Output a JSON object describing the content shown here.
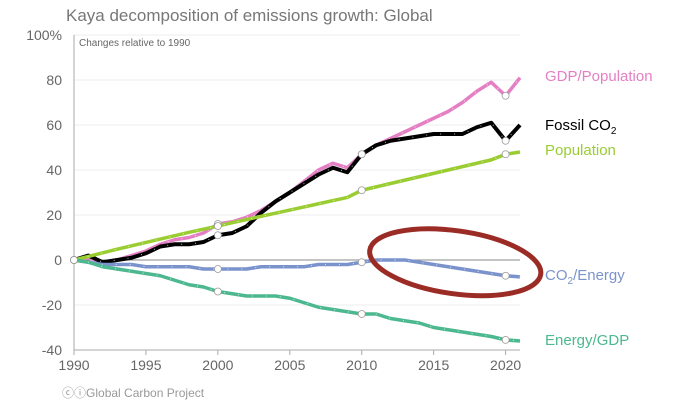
{
  "chart_data": {
    "type": "line",
    "title": "Kaya decomposition of emissions growth: Global",
    "subtitle": "Changes relative to 1990",
    "credit": "Global Carbon Project",
    "xlabel": "",
    "ylabel": "",
    "xlim": [
      1990,
      2021
    ],
    "ylim": [
      -40,
      100
    ],
    "xticks": [
      1990,
      1995,
      2000,
      2005,
      2010,
      2015,
      2020
    ],
    "yticks": [
      {
        "v": 100,
        "t": "100%"
      },
      {
        "v": 80,
        "t": "80"
      },
      {
        "v": 60,
        "t": "60"
      },
      {
        "v": 40,
        "t": "40"
      },
      {
        "v": 20,
        "t": "20"
      },
      {
        "v": 0,
        "t": "0"
      },
      {
        "v": -20,
        "t": "-20"
      },
      {
        "v": -40,
        "t": "-40"
      }
    ],
    "grid": true,
    "x": [
      1990,
      1991,
      1992,
      1993,
      1994,
      1995,
      1996,
      1997,
      1998,
      1999,
      2000,
      2001,
      2002,
      2003,
      2004,
      2005,
      2006,
      2007,
      2008,
      2009,
      2010,
      2011,
      2012,
      2013,
      2014,
      2015,
      2016,
      2017,
      2018,
      2019,
      2020,
      2021
    ],
    "series": [
      {
        "name": "GDP/Population",
        "color": "#e57fc4",
        "values": [
          0,
          1,
          -1,
          0,
          2,
          4,
          7,
          9,
          10,
          12,
          16,
          17,
          19,
          22,
          26,
          30,
          35,
          40,
          43,
          41,
          47,
          51,
          54,
          57,
          60,
          63,
          66,
          70,
          75,
          79,
          73,
          81
        ]
      },
      {
        "name": "Fossil CO",
        "name_sub": "2",
        "color": "#000000",
        "values": [
          0,
          2,
          -1,
          0,
          1,
          3,
          6,
          7,
          7,
          8,
          11,
          12,
          15,
          21,
          26,
          30,
          34,
          38,
          41,
          39,
          47,
          51,
          53,
          54,
          55,
          56,
          56,
          56,
          59,
          61,
          53,
          60
        ]
      },
      {
        "name": "Population",
        "color": "#9acd32",
        "values": [
          0,
          1.6,
          3.2,
          4.8,
          6.3,
          7.8,
          9.3,
          10.8,
          12.3,
          13.7,
          15.1,
          16.6,
          18,
          19.4,
          20.8,
          22.2,
          23.6,
          25,
          26.4,
          27.8,
          31,
          32.5,
          34,
          35.5,
          37,
          38.5,
          40,
          41.5,
          43,
          44.5,
          47,
          48
        ]
      },
      {
        "name": "CO",
        "name_sub": "2",
        "name_suffix": "/Energy",
        "color": "#7b93cc",
        "values": [
          0,
          -1,
          -2,
          -2,
          -2,
          -3,
          -3,
          -3,
          -3,
          -4,
          -4,
          -4,
          -4,
          -3,
          -3,
          -3,
          -3,
          -2,
          -2,
          -2,
          -1,
          0,
          0,
          0,
          -1,
          -2,
          -3,
          -4,
          -5,
          -6,
          -7,
          -7.5
        ]
      },
      {
        "name": "Energy/GDP",
        "color": "#4cb88f",
        "values": [
          0,
          -1,
          -3,
          -4,
          -5,
          -6,
          -7,
          -9,
          -11,
          -12,
          -14,
          -15,
          -16,
          -16,
          -16,
          -17,
          -19,
          -21,
          -22,
          -23,
          -24,
          -24,
          -26,
          -27,
          -28,
          -30,
          -31,
          -32,
          -33,
          -34,
          -35.5,
          -36
        ]
      }
    ],
    "markers_at": [
      1990,
      2000,
      2010,
      2020
    ],
    "annotation": {
      "type": "ellipse",
      "color": "#9b2b25",
      "x_range": [
        2010.5,
        2022.5
      ],
      "y_range": [
        -15,
        13
      ]
    }
  }
}
